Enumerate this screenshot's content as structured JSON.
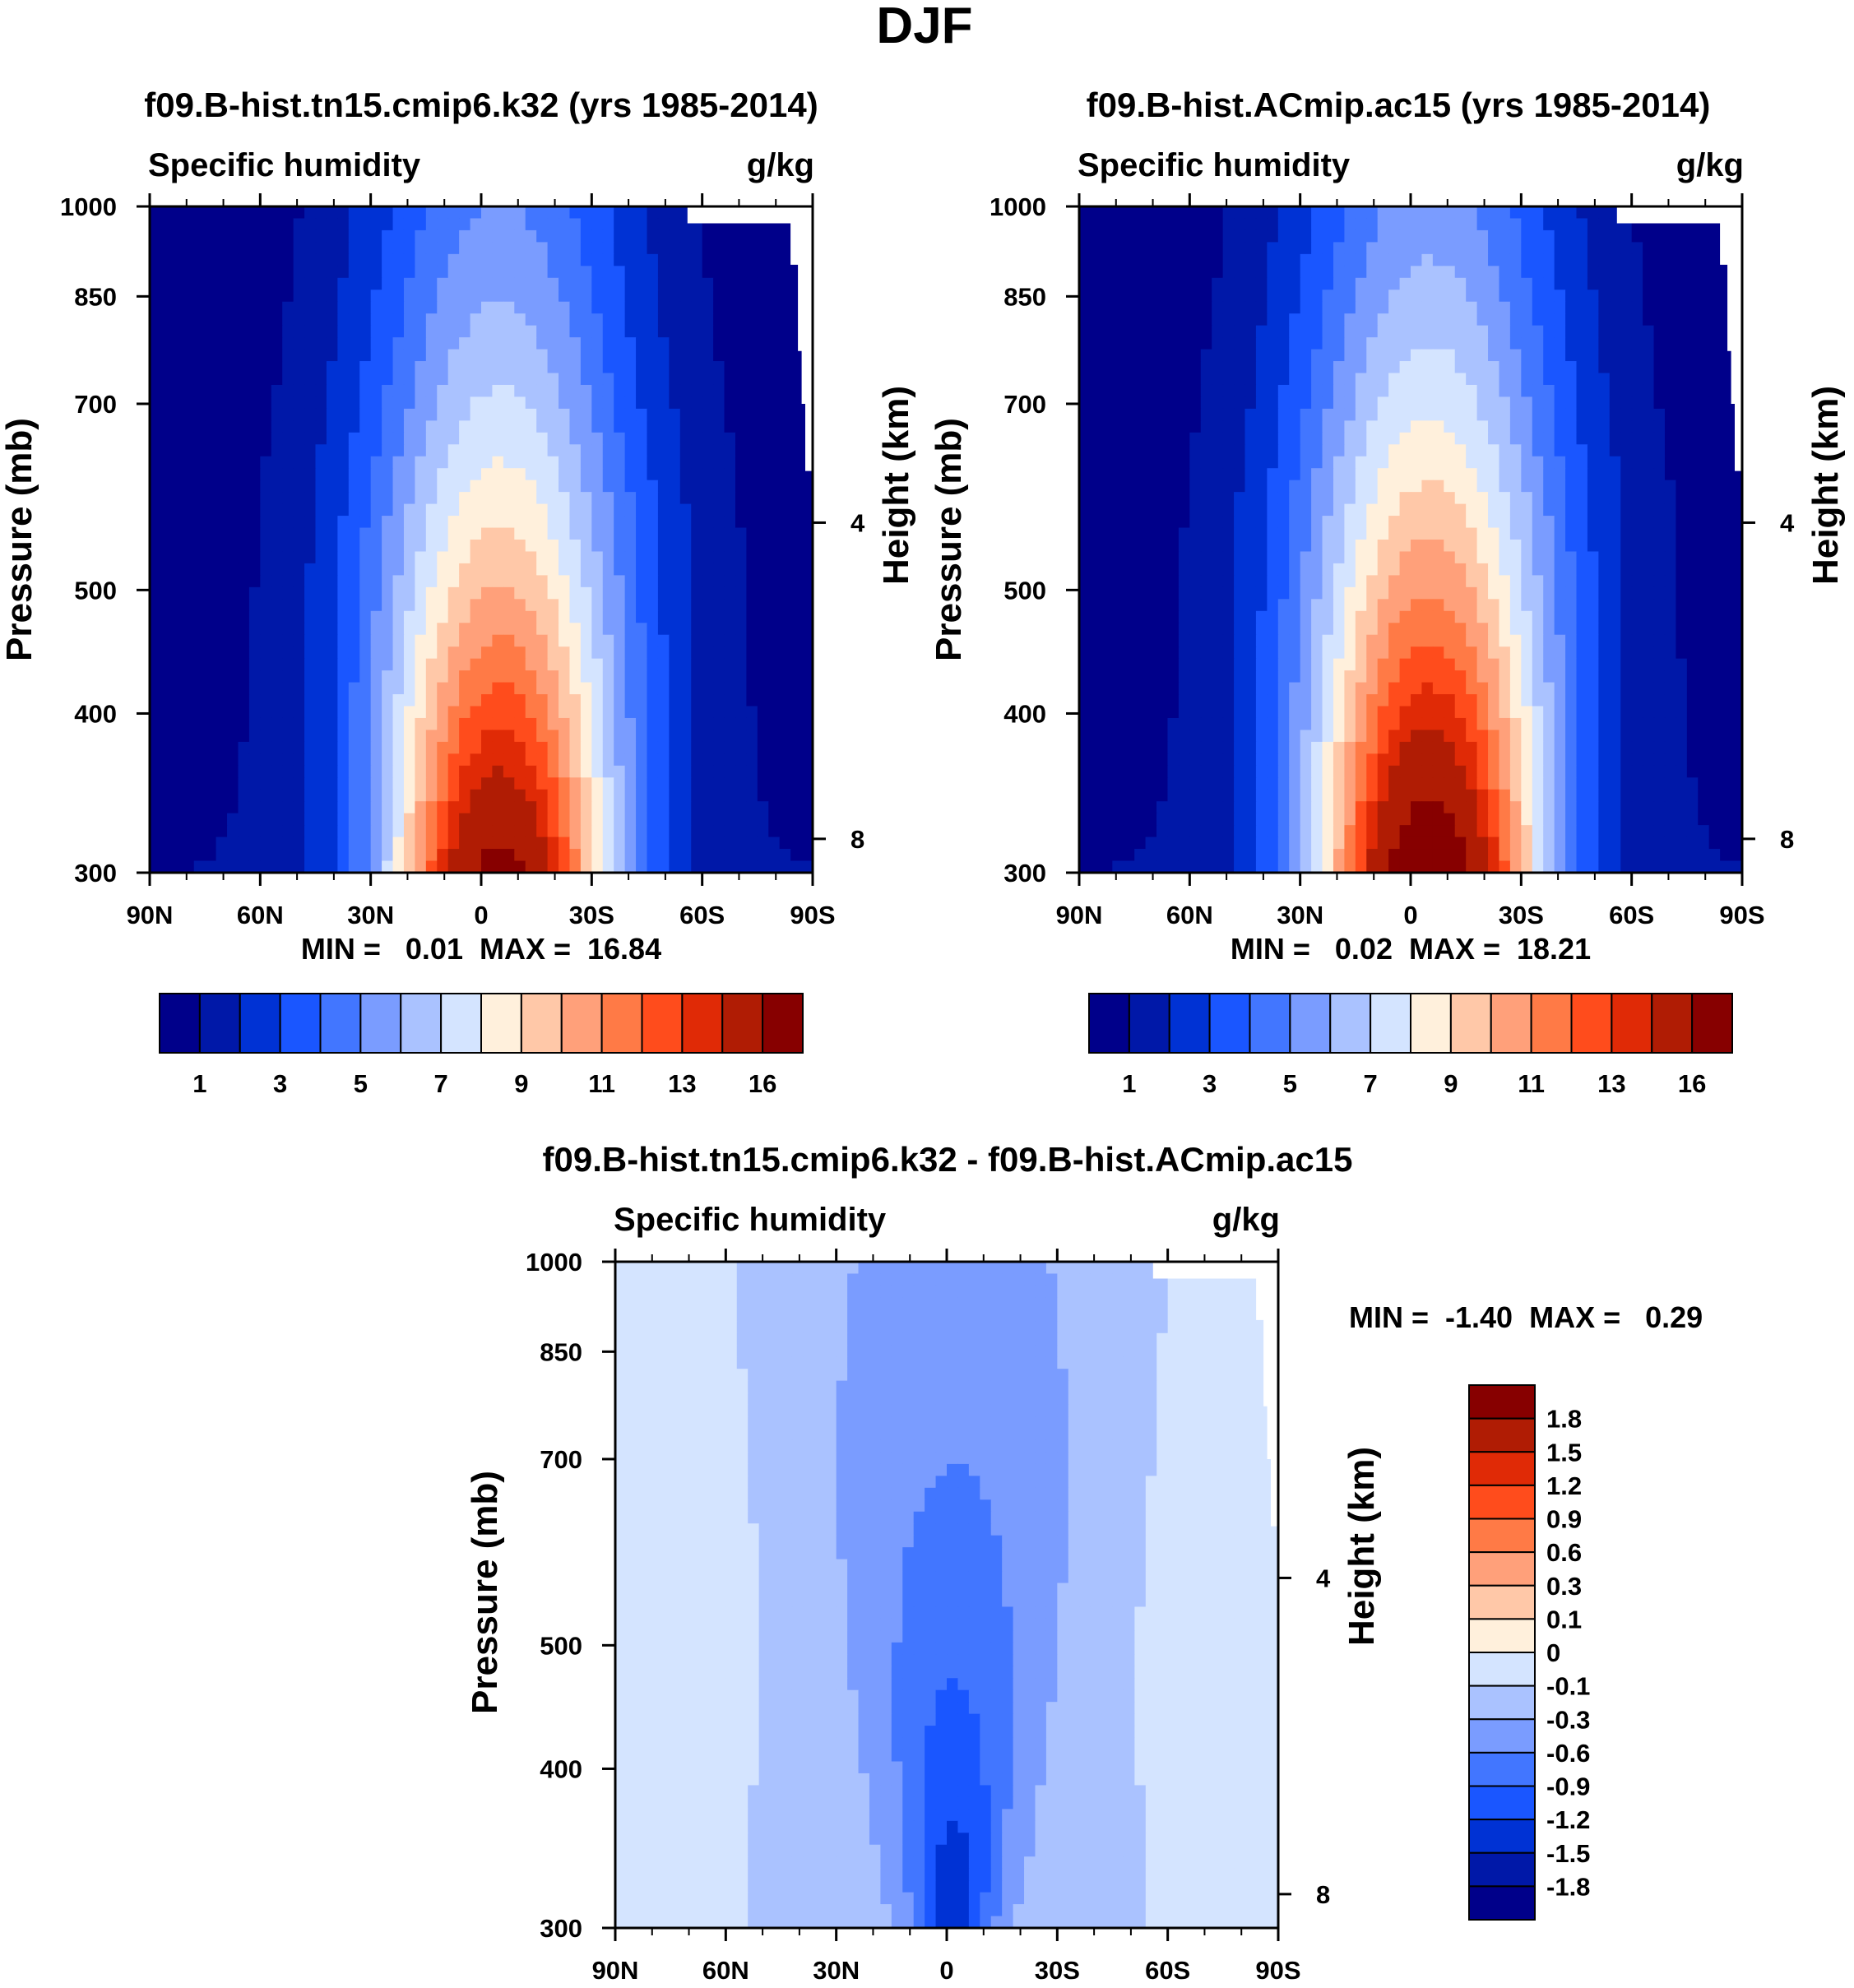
{
  "figure_title": "DJF",
  "colors": {
    "abs_levels": [
      "#00008a",
      "#0018a8",
      "#0032d4",
      "#1a56ff",
      "#4276ff",
      "#7a9cff",
      "#aac2ff",
      "#d4e4ff",
      "#fff0dc",
      "#ffc8a8",
      "#ffa07a",
      "#ff7a46",
      "#ff4c1c",
      "#e02a06",
      "#b01c04",
      "#870000"
    ],
    "diff_levels": [
      "#00008a",
      "#0018a8",
      "#0032d4",
      "#1a56ff",
      "#4276ff",
      "#7a9cff",
      "#aac2ff",
      "#d4e4ff",
      "#fff0dc",
      "#ffc8a8",
      "#ffa07a",
      "#ff7a46",
      "#ff4c1c",
      "#e02a06",
      "#b01c04",
      "#870000"
    ]
  },
  "chart_data": [
    {
      "id": "panel-k32",
      "type": "heatmap",
      "title": "f09.B-hist.tn15.cmip6.k32 (yrs 1985-2014)",
      "left_label": "Specific humidity",
      "right_label": "g/kg",
      "ylabel": "Pressure (mb)",
      "y2label": "Height (km)",
      "xlabel_ticks": [
        "90N",
        "60N",
        "30N",
        "0",
        "30S",
        "60S",
        "90S"
      ],
      "x_values": [
        90,
        60,
        30,
        0,
        -30,
        -60,
        -90
      ],
      "y_ticks": [
        300,
        400,
        500,
        700,
        850,
        1000
      ],
      "y2_ticks": [
        8,
        4
      ],
      "ylim": [
        1000,
        300
      ],
      "xlim": [
        90,
        -90
      ],
      "min_max_text": "MIN =   0.01  MAX =  16.84",
      "min": 0.01,
      "max": 16.84,
      "contour_levels": [
        1,
        2,
        3,
        4,
        5,
        6,
        7,
        8,
        9,
        10,
        11,
        12,
        13,
        14,
        16
      ],
      "colorbar_labels": [
        "1",
        "3",
        "5",
        "7",
        "9",
        "11",
        "13",
        "16"
      ],
      "peak_lat": -5,
      "peak_value": 16.84
    },
    {
      "id": "panel-ac15",
      "type": "heatmap",
      "title": "f09.B-hist.ACmip.ac15 (yrs 1985-2014)",
      "left_label": "Specific humidity",
      "right_label": "g/kg",
      "ylabel": "Pressure (mb)",
      "y2label": "Height (km)",
      "xlabel_ticks": [
        "90N",
        "60N",
        "30N",
        "0",
        "30S",
        "60S",
        "90S"
      ],
      "x_values": [
        90,
        60,
        30,
        0,
        -30,
        -60,
        -90
      ],
      "y_ticks": [
        300,
        400,
        500,
        700,
        850,
        1000
      ],
      "y2_ticks": [
        8,
        4
      ],
      "ylim": [
        1000,
        300
      ],
      "xlim": [
        90,
        -90
      ],
      "min_max_text": "MIN =   0.02  MAX =  18.21",
      "min": 0.02,
      "max": 18.21,
      "contour_levels": [
        1,
        2,
        3,
        4,
        5,
        6,
        7,
        8,
        9,
        10,
        11,
        12,
        13,
        14,
        16
      ],
      "colorbar_labels": [
        "1",
        "3",
        "5",
        "7",
        "9",
        "11",
        "13",
        "16"
      ],
      "peak_lat": -5,
      "peak_value": 18.21
    },
    {
      "id": "panel-diff",
      "type": "heatmap",
      "title": "f09.B-hist.tn15.cmip6.k32 - f09.B-hist.ACmip.ac15",
      "left_label": "Specific humidity",
      "right_label": "g/kg",
      "ylabel": "Pressure (mb)",
      "y2label": "Height (km)",
      "xlabel_ticks": [
        "90N",
        "60N",
        "30N",
        "0",
        "30S",
        "60S",
        "90S"
      ],
      "x_values": [
        90,
        60,
        30,
        0,
        -30,
        -60,
        -90
      ],
      "y_ticks": [
        300,
        400,
        500,
        700,
        850,
        1000
      ],
      "y2_ticks": [
        8,
        4
      ],
      "ylim": [
        1000,
        300
      ],
      "xlim": [
        90,
        -90
      ],
      "min_max_text": "MIN =  -1.40  MAX =   0.29",
      "min": -1.4,
      "max": 0.29,
      "contour_levels": [
        -1.8,
        -1.5,
        -1.2,
        -0.9,
        -0.6,
        -0.3,
        -0.1,
        0,
        0.1,
        0.3,
        0.6,
        0.9,
        1.2,
        1.5,
        1.8
      ],
      "colorbar_labels": [
        "1.8",
        "1.5",
        "1.2",
        "0.9",
        "0.6",
        "0.3",
        "0.1",
        "0",
        "-0.1",
        "-0.3",
        "-0.6",
        "-0.9",
        "-1.2",
        "-1.5",
        "-1.8"
      ]
    }
  ]
}
